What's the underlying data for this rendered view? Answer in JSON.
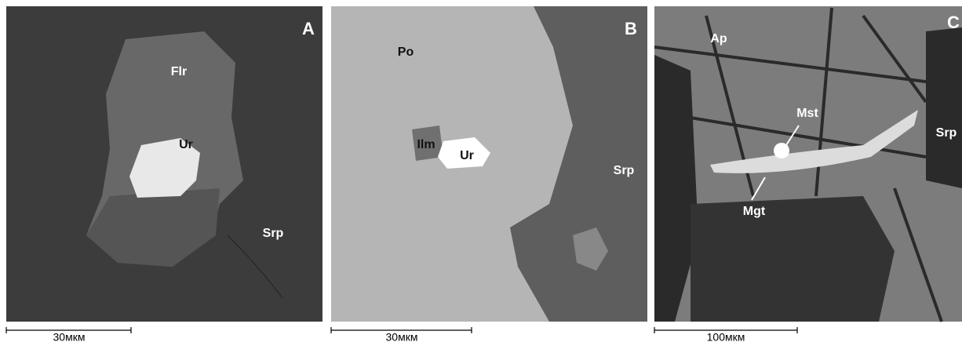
{
  "panels": [
    {
      "letter": "A",
      "labels": [
        "Flr",
        "Ur",
        "Srp"
      ],
      "scale_bar": "30мкм"
    },
    {
      "letter": "B",
      "labels": [
        "Po",
        "Ilm",
        "Ur",
        "Srp"
      ],
      "scale_bar": "30мкм"
    },
    {
      "letter": "C",
      "labels": [
        "Ap",
        "Mst",
        "Srp",
        "Mgt"
      ],
      "scale_bar": "100мкм"
    }
  ]
}
